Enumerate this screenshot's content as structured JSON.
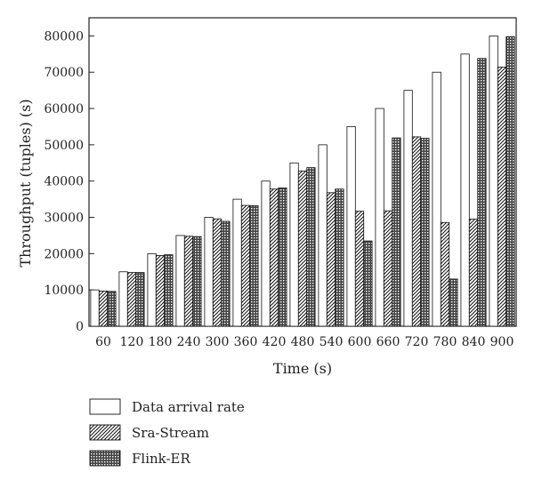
{
  "chart_data": {
    "type": "bar",
    "xlabel": "Time (s)",
    "ylabel": "Throughput (tuples) (s)",
    "ylim": [
      0,
      85000
    ],
    "yticks": [
      0,
      10000,
      20000,
      30000,
      40000,
      50000,
      60000,
      70000,
      80000
    ],
    "categories": [
      "60",
      "120",
      "180",
      "240",
      "300",
      "360",
      "420",
      "480",
      "540",
      "600",
      "660",
      "720",
      "780",
      "840",
      "900"
    ],
    "grid": false,
    "legend_position": "bottom-left",
    "series": [
      {
        "name": "Data arrival rate",
        "pattern": "white",
        "values": [
          10000,
          15000,
          20000,
          25000,
          30000,
          35000,
          40000,
          45000,
          50000,
          55000,
          60000,
          65000,
          70000,
          75000,
          80000
        ]
      },
      {
        "name": "Sra-Stream",
        "pattern": "diagonal-hatch",
        "values": [
          9700,
          14800,
          19500,
          24800,
          29600,
          33300,
          37800,
          42800,
          36800,
          31700,
          31800,
          52200,
          28600,
          29500,
          71400
        ]
      },
      {
        "name": "Flink-ER",
        "pattern": "crosshatch",
        "values": [
          9600,
          14800,
          19700,
          24700,
          28900,
          33200,
          38100,
          43700,
          37800,
          23500,
          51900,
          51800,
          13000,
          73800,
          79800
        ]
      }
    ]
  }
}
